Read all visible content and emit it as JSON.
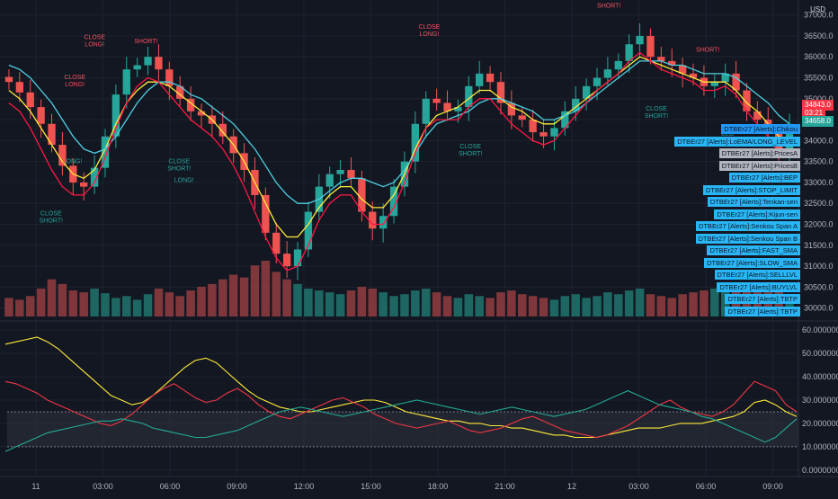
{
  "currency": "USD",
  "price_axis": {
    "ticks": [
      "37000.0",
      "36500.0",
      "36000.0",
      "35500.0",
      "35000.0",
      "34500.0",
      "34000.0",
      "33500.0",
      "33000.0",
      "32500.0",
      "32000.0",
      "31500.0",
      "31000.0",
      "30500.0",
      "30000.0"
    ],
    "ymin": 29800,
    "ymax": 37100
  },
  "osc_axis": {
    "ticks": [
      "60.00000000",
      "50.00000000",
      "40.00000000",
      "30.00000000",
      "20.00000000",
      "10.00000000",
      "0.00000000"
    ],
    "ymin": -2,
    "ymax": 62
  },
  "time_axis": [
    "11",
    "03:00",
    "06:00",
    "09:00",
    "12:00",
    "15:00",
    "18:00",
    "21:00",
    "12",
    "03:00",
    "06:00",
    "09:00"
  ],
  "price_badges": [
    {
      "text": "34843.0",
      "bg": "#f23645",
      "price": 34843
    },
    {
      "text": "03:21",
      "bg": "#f23645",
      "price": 34660
    },
    {
      "text": "34658.0",
      "bg": "#26a69a",
      "price": 34450
    }
  ],
  "alert_tags": [
    {
      "text": "DTBEr27 [Alerts]:Chikou",
      "bg": "#2196f3"
    },
    {
      "text": "DTBEr27 [Alerts]:LoEMA/LONG_LEVEL",
      "bg": "#29b6f6"
    },
    {
      "text": "DTBEr27 [Alerts]:PricesA",
      "bg": "#b2b5be"
    },
    {
      "text": "DTBEr27 [Alerts]:PricesB",
      "bg": "#b2b5be"
    },
    {
      "text": "DTBEr27 [Alerts]:BEP",
      "bg": "#29b6f6"
    },
    {
      "text": "DTBEr27 [Alerts]:STOP_LIMIT",
      "bg": "#29b6f6"
    },
    {
      "text": "DTBEr27 [Alerts]:Tenkan-sen",
      "bg": "#29b6f6"
    },
    {
      "text": "DTBEr27 [Alerts]:Kijun-sen",
      "bg": "#29b6f6"
    },
    {
      "text": "DTBEr27 [Alerts]:Senkou Span A",
      "bg": "#29b6f6"
    },
    {
      "text": "DTBEr27 [Alerts]:Senkou Span B",
      "bg": "#29b6f6"
    },
    {
      "text": "DTBEr27 [Alerts]:FAST_SMA",
      "bg": "#29b6f6"
    },
    {
      "text": "DTBEr27 [Alerts]:SLOW_SMA",
      "bg": "#29b6f6"
    },
    {
      "text": "DTBEr27 [Alerts]:SELLLVL",
      "bg": "#29b6f6"
    },
    {
      "text": "DTBEr27 [Alerts]:BUYLVL",
      "bg": "#29b6f6"
    },
    {
      "text": "DTBEr27 [Alerts]:TBTP",
      "bg": "#29b6f6"
    },
    {
      "text": "DTBEr27 [Alerts]:TBTP",
      "bg": "#29b6f6"
    }
  ],
  "signals": [
    {
      "text": "CLOSE",
      "text2": "LONG!",
      "color": "#f7525f",
      "t": 0.115,
      "price": 36250,
      "above": true
    },
    {
      "text": "CLOSE",
      "text2": "LONG!",
      "color": "#f7525f",
      "t": 0.09,
      "price": 35300,
      "above": true
    },
    {
      "text": "SHORT!",
      "text2": "",
      "color": "#f7525f",
      "t": 0.18,
      "price": 36150,
      "above": true
    },
    {
      "text": "LONG!",
      "text2": "",
      "color": "#26a69a",
      "t": 0.087,
      "price": 33550,
      "above": false
    },
    {
      "text": "CLOSE",
      "text2": "SHORT!",
      "color": "#26a69a",
      "t": 0.06,
      "price": 32300,
      "above": false
    },
    {
      "text": "CLOSE",
      "text2": "SHORT!",
      "color": "#26a69a",
      "t": 0.222,
      "price": 33550,
      "above": false
    },
    {
      "text": "LONG!",
      "text2": "",
      "color": "#26a69a",
      "t": 0.228,
      "price": 33100,
      "above": false
    },
    {
      "text": "CLOSE",
      "text2": "LONG!",
      "color": "#f7525f",
      "t": 0.538,
      "price": 36500,
      "above": true
    },
    {
      "text": "CLOSE",
      "text2": "SHORT!",
      "color": "#26a69a",
      "t": 0.59,
      "price": 33900,
      "above": false
    },
    {
      "text": "SHORT!",
      "text2": "",
      "color": "#f7525f",
      "t": 0.765,
      "price": 37000,
      "above": true
    },
    {
      "text": "CLOSE",
      "text2": "SHORT!",
      "color": "#26a69a",
      "t": 0.825,
      "price": 34800,
      "above": false
    },
    {
      "text": "SHORT!",
      "text2": "",
      "color": "#f7525f",
      "t": 0.89,
      "price": 35950,
      "above": true
    },
    {
      "text": "CLO",
      "text2": "SHO",
      "color": "#26a69a",
      "t": 0.915,
      "price": 34200,
      "above": false
    }
  ],
  "chart_data": [
    {
      "type": "candlestick",
      "title": "",
      "ylim": [
        29800,
        37100
      ],
      "series": [
        {
          "name": "",
          "kind": "close",
          "values": [
            35400,
            35150,
            34800,
            34400,
            33900,
            33400,
            33000,
            32900,
            33350,
            34100,
            35100,
            35700,
            35800,
            36000,
            35700,
            35300,
            35000,
            34700,
            34600,
            34400,
            34100,
            33700,
            33300,
            32700,
            31800,
            31300,
            31000,
            31400,
            32300,
            32900,
            33200,
            33300,
            33100,
            32300,
            31900,
            32200,
            32900,
            33500,
            34400,
            35000,
            34900,
            34700,
            34800,
            35300,
            35600,
            35400,
            34900,
            34600,
            34500,
            34200,
            34100,
            34300,
            34700,
            35000,
            35300,
            35500,
            35700,
            35900,
            36300,
            36500,
            36000,
            35900,
            35800,
            35600,
            35500,
            35300,
            35400,
            35600,
            35200,
            34700,
            34500,
            34200,
            33700,
            34400
          ]
        },
        {
          "name": "",
          "kind": "volume",
          "values": [
            20,
            18,
            22,
            30,
            40,
            35,
            28,
            26,
            30,
            25,
            20,
            22,
            18,
            24,
            30,
            26,
            22,
            28,
            32,
            35,
            40,
            45,
            42,
            55,
            60,
            48,
            40,
            35,
            30,
            28,
            26,
            24,
            28,
            32,
            30,
            26,
            22,
            24,
            28,
            30,
            26,
            22,
            20,
            24,
            22,
            20,
            26,
            28,
            24,
            22,
            20,
            18,
            22,
            24,
            20,
            22,
            26,
            24,
            28,
            30,
            24,
            22,
            20,
            24,
            26,
            28,
            30,
            32,
            35,
            30,
            28,
            26,
            30,
            24
          ]
        },
        {
          "name": "",
          "kind": "ma-yellow",
          "values": [
            35200,
            35000,
            34700,
            34300,
            33900,
            33500,
            33200,
            33100,
            33300,
            33800,
            34400,
            34900,
            35200,
            35400,
            35400,
            35300,
            35100,
            34900,
            34700,
            34500,
            34200,
            33900,
            33500,
            33000,
            32500,
            32000,
            31700,
            31700,
            32000,
            32400,
            32700,
            32900,
            32900,
            32600,
            32400,
            32400,
            32700,
            33200,
            33800,
            34300,
            34600,
            34700,
            34800,
            35000,
            35200,
            35200,
            35000,
            34800,
            34700,
            34500,
            34400,
            34400,
            34600,
            34800,
            35000,
            35200,
            35400,
            35600,
            35800,
            36000,
            35900,
            35800,
            35700,
            35600,
            35500,
            35400,
            35400,
            35400,
            35200,
            34900,
            34700,
            34400,
            34100,
            34000
          ]
        },
        {
          "name": "",
          "kind": "ma-cyan",
          "values": [
            35800,
            35700,
            35500,
            35200,
            34900,
            34500,
            34100,
            33800,
            33700,
            33800,
            34100,
            34500,
            34900,
            35200,
            35400,
            35400,
            35300,
            35100,
            35000,
            34800,
            34600,
            34400,
            34100,
            33800,
            33400,
            33000,
            32700,
            32500,
            32500,
            32600,
            32800,
            33000,
            33100,
            33100,
            33000,
            32900,
            33000,
            33300,
            33700,
            34100,
            34400,
            34500,
            34600,
            34700,
            34900,
            35000,
            35000,
            34900,
            34800,
            34700,
            34500,
            34500,
            34600,
            34700,
            34900,
            35100,
            35300,
            35500,
            35700,
            35900,
            35900,
            35900,
            35800,
            35800,
            35700,
            35600,
            35600,
            35600,
            35500,
            35300,
            35100,
            34900,
            34600,
            34400
          ]
        },
        {
          "name": "",
          "kind": "ma-red",
          "values": [
            34900,
            34700,
            34300,
            33800,
            33300,
            32900,
            32700,
            32700,
            33000,
            33600,
            34300,
            34900,
            35300,
            35500,
            35400,
            35100,
            34800,
            34500,
            34300,
            34100,
            33800,
            33400,
            32900,
            32300,
            31700,
            31200,
            30900,
            31000,
            31500,
            32100,
            32500,
            32700,
            32700,
            32300,
            32000,
            32000,
            32400,
            33000,
            33700,
            34300,
            34500,
            34500,
            34500,
            34800,
            35000,
            35000,
            34700,
            34400,
            34200,
            34000,
            33900,
            34000,
            34300,
            34600,
            34900,
            35200,
            35400,
            35600,
            35900,
            36100,
            35900,
            35700,
            35600,
            35500,
            35400,
            35200,
            35200,
            35300,
            35100,
            34700,
            34400,
            34100,
            33700,
            33600
          ]
        }
      ]
    },
    {
      "type": "line",
      "title": "",
      "ylim": [
        -2,
        62
      ],
      "band": [
        10,
        25
      ],
      "series": [
        {
          "name": "",
          "color": "#ffeb3b",
          "values": [
            54,
            55,
            56,
            57,
            55,
            52,
            48,
            44,
            40,
            36,
            32,
            30,
            28,
            29,
            32,
            36,
            40,
            44,
            47,
            48,
            46,
            42,
            38,
            34,
            31,
            29,
            27,
            26,
            25,
            25,
            26,
            27,
            28,
            29,
            30,
            30,
            29,
            27,
            25,
            24,
            23,
            22,
            21,
            21,
            20,
            20,
            19,
            19,
            18,
            18,
            17,
            16,
            15,
            15,
            14,
            14,
            14,
            15,
            16,
            17,
            18,
            18,
            18,
            19,
            20,
            20,
            20,
            21,
            22,
            23,
            25,
            29,
            30,
            28,
            25,
            23
          ]
        },
        {
          "name": "",
          "color": "#f23645",
          "values": [
            38,
            37,
            35,
            33,
            30,
            28,
            26,
            24,
            22,
            20,
            19,
            21,
            24,
            28,
            32,
            35,
            37,
            34,
            31,
            29,
            30,
            33,
            35,
            32,
            28,
            25,
            23,
            22,
            24,
            26,
            28,
            30,
            31,
            29,
            27,
            24,
            22,
            20,
            19,
            18,
            19,
            20,
            21,
            19,
            17,
            16,
            17,
            18,
            20,
            22,
            23,
            21,
            19,
            17,
            16,
            15,
            14,
            15,
            17,
            19,
            22,
            25,
            28,
            30,
            27,
            25,
            24,
            23,
            25,
            28,
            33,
            38,
            36,
            34,
            28,
            25
          ]
        },
        {
          "name": "",
          "color": "#22ab94",
          "values": [
            8,
            10,
            12,
            14,
            16,
            17,
            18,
            19,
            20,
            21,
            21,
            22,
            21,
            20,
            18,
            17,
            16,
            15,
            14,
            14,
            15,
            16,
            17,
            19,
            21,
            23,
            25,
            26,
            27,
            26,
            25,
            24,
            23,
            24,
            25,
            26,
            27,
            28,
            29,
            30,
            29,
            28,
            27,
            26,
            25,
            24,
            25,
            26,
            27,
            26,
            25,
            24,
            23,
            24,
            25,
            26,
            28,
            30,
            32,
            34,
            32,
            30,
            28,
            27,
            26,
            25,
            23,
            22,
            20,
            18,
            16,
            14,
            12,
            14,
            18,
            22
          ]
        }
      ]
    }
  ]
}
